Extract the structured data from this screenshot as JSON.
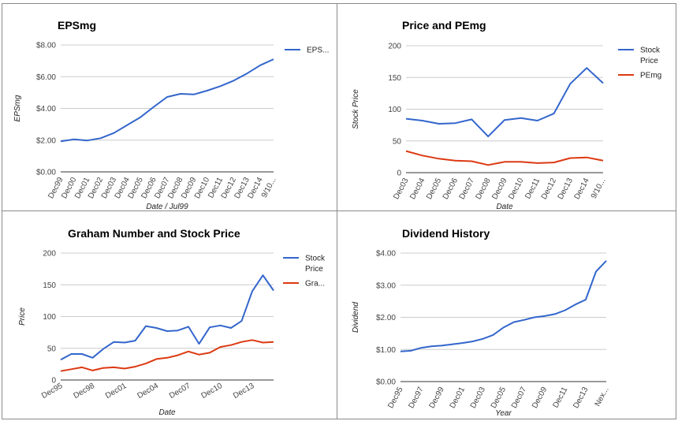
{
  "colors": {
    "blue": "#3366cc",
    "red": "#dc3912"
  },
  "chart_data": [
    {
      "type": "line",
      "title": "EPSmg",
      "xlabel": "Date / Jul99",
      "ylabel": "EPSmg",
      "ylim": [
        0,
        8
      ],
      "yticks": [
        "$0.00",
        "$2.00",
        "$4.00",
        "$6.00",
        "$8.00"
      ],
      "categories": [
        "Dec99",
        "Dec00",
        "Dec01",
        "Dec02",
        "Dec03",
        "Dec04",
        "Dec05",
        "Dec06",
        "Dec07",
        "Dec08",
        "Dec09",
        "Dec10",
        "Dec11",
        "Dec12",
        "Dec13",
        "Dec14",
        "9/10..."
      ],
      "series": [
        {
          "name": "EPS...",
          "color": "#3366cc",
          "values": [
            1.93,
            2.05,
            1.98,
            2.12,
            2.45,
            2.95,
            3.45,
            4.1,
            4.72,
            4.92,
            4.88,
            5.12,
            5.4,
            5.75,
            6.2,
            6.72,
            7.1
          ]
        }
      ],
      "legend": "right"
    },
    {
      "type": "line",
      "title": "Price and PEmg",
      "xlabel": "Date",
      "ylabel": "Stock Price",
      "ylim": [
        0,
        200
      ],
      "yticks": [
        "0",
        "50",
        "100",
        "150",
        "200"
      ],
      "categories": [
        "Dec03",
        "Dec04",
        "Dec05",
        "Dec06",
        "Dec07",
        "Dec08",
        "Dec09",
        "Dec10",
        "Dec11",
        "Dec12",
        "Dec13",
        "Dec14",
        "9/10..."
      ],
      "series": [
        {
          "name": "Stock Price",
          "color": "#3366cc",
          "values": [
            85,
            82,
            77,
            78,
            84,
            57,
            83,
            86,
            82,
            93,
            140,
            165,
            141
          ]
        },
        {
          "name": "PEmg",
          "color": "#dc3912",
          "values": [
            34,
            27,
            22,
            19,
            18,
            12,
            17,
            17,
            15,
            16,
            23,
            24,
            19
          ]
        }
      ],
      "legend": "right"
    },
    {
      "type": "line",
      "title": "Graham Number and Stock Price",
      "xlabel": "Date",
      "ylabel": "Price",
      "ylim": [
        0,
        200
      ],
      "yticks": [
        "0",
        "50",
        "100",
        "150",
        "200"
      ],
      "x_tick_labels": [
        "Dec95",
        "Dec98",
        "Dec01",
        "Dec04",
        "Dec07",
        "Dec10",
        "Dec13"
      ],
      "series": [
        {
          "name": "Stock Price",
          "color": "#3366cc",
          "values": [
            32,
            41,
            41,
            35,
            49,
            60,
            59,
            62,
            85,
            82,
            77,
            78,
            84,
            57,
            83,
            86,
            82,
            93,
            140,
            165,
            141
          ]
        },
        {
          "name": "Gra...",
          "color": "#dc3912",
          "values": [
            14,
            17,
            20,
            15,
            19,
            20,
            18,
            21,
            26,
            33,
            35,
            39,
            45,
            40,
            43,
            52,
            55,
            60,
            63,
            59,
            60
          ]
        }
      ],
      "legend": "right"
    },
    {
      "type": "line",
      "title": "Dividend History",
      "xlabel": "Year",
      "ylabel": "Dividend",
      "ylim": [
        0,
        4
      ],
      "yticks": [
        "$0.00",
        "$1.00",
        "$2.00",
        "$3.00",
        "$4.00"
      ],
      "x_tick_labels": [
        "Dec95",
        "Dec97",
        "Dec99",
        "Dec01",
        "Dec03",
        "Dec05",
        "Dec07",
        "Dec09",
        "Dec11",
        "Dec13",
        "Nex..."
      ],
      "series": [
        {
          "name": "Dividend",
          "color": "#3366cc",
          "values": [
            0.94,
            0.96,
            1.05,
            1.1,
            1.12,
            1.16,
            1.2,
            1.25,
            1.33,
            1.45,
            1.68,
            1.85,
            1.92,
            2.0,
            2.04,
            2.1,
            2.22,
            2.4,
            2.55,
            3.42,
            3.76
          ]
        }
      ],
      "legend": "none"
    }
  ]
}
